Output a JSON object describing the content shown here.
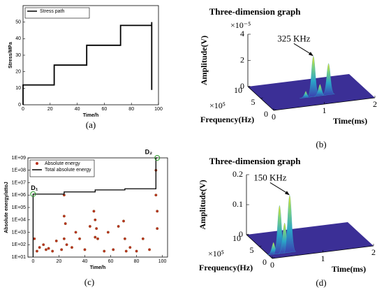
{
  "chart_data": [
    {
      "type": "line",
      "panel_label": "(a)",
      "xlabel": "Time/h",
      "ylabel": "Stress/MPa",
      "x": [
        0,
        0,
        23,
        23,
        47,
        47,
        72,
        72,
        95,
        95,
        95
      ],
      "series": [
        {
          "name": "Stress path",
          "color": "#000000",
          "values": [
            0,
            12,
            12,
            24,
            24,
            36,
            36,
            48,
            48,
            50,
            9
          ]
        }
      ],
      "xlim": [
        0,
        100
      ],
      "ylim": [
        0,
        60
      ],
      "xticks": [
        0,
        20,
        40,
        60,
        80,
        100
      ],
      "yticks": [
        0,
        10,
        20,
        30,
        40,
        50
      ],
      "legend": "upper left"
    },
    {
      "type": "surface",
      "panel_label": "(b)",
      "title": "Three-dimension graph",
      "zlabel": "Amplitude(V)",
      "xlabel": "Frequency(Hz)",
      "ylabel": "Time(ms)",
      "zscale_label": "×10⁻⁵",
      "fscale_label": "×10⁵",
      "annotation": "325 KHz",
      "zlim": [
        0,
        4
      ],
      "zticks": [
        0,
        2,
        4
      ],
      "flim": [
        0,
        10
      ],
      "fticks": [
        10,
        5,
        0
      ],
      "tlim": [
        0,
        2
      ],
      "tticks": [
        0,
        1,
        2
      ],
      "time": [
        0.95,
        1.25,
        1.08,
        0.8
      ],
      "frequency": [
        3.25,
        3.25,
        3.25,
        3.25
      ],
      "amplitude": [
        3.1,
        2.4,
        0.9,
        0.5
      ]
    },
    {
      "type": "mixed",
      "panel_label": "(c)",
      "xlabel": "Time/h",
      "ylabel": "Absolute energy/attoJ",
      "log_y": true,
      "legend": "upper left",
      "series": [
        {
          "name": "Absolute energy",
          "type": "scatter",
          "color": "#b8321e",
          "x": [
            1,
            3,
            5,
            8,
            10,
            12,
            15,
            18,
            22,
            24,
            24,
            24,
            25,
            26,
            30,
            33,
            36,
            40,
            44,
            47,
            48,
            48,
            49,
            50,
            55,
            58,
            62,
            66,
            70,
            71,
            72,
            75,
            80,
            85,
            90,
            95,
            95,
            96,
            96
          ],
          "values": [
            300,
            30,
            60,
            100,
            40,
            50,
            30,
            200,
            40,
            20000,
            1000000,
            300,
            5000,
            100,
            60,
            1000,
            300,
            40,
            3000,
            50000,
            10000,
            400,
            2000,
            300,
            30,
            1000,
            40,
            3000,
            8000,
            300,
            30,
            60,
            30,
            300,
            40,
            1000000,
            100000000,
            2000,
            50000
          ]
        },
        {
          "name": "Total absolute energy",
          "type": "line",
          "color": "#000000",
          "x": [
            0,
            0,
            24,
            24,
            48,
            48,
            71,
            71,
            95,
            95,
            96
          ],
          "values": [
            10,
            1200000,
            1200000,
            1800000,
            1800000,
            2600000,
            2600000,
            3200000,
            3200000,
            1000000000,
            1000000000
          ]
        }
      ],
      "annotations": [
        {
          "text": "D₁",
          "x": 0,
          "y": 1200000
        },
        {
          "text": "D₂",
          "x": 96,
          "y": 1000000000
        }
      ],
      "xlim": [
        -4,
        104
      ],
      "ylim": [
        10,
        1000000000
      ],
      "xticks": [
        0,
        20,
        40,
        60,
        80,
        100
      ],
      "yticks": [
        {
          "value": 10,
          "label": "1E+01"
        },
        {
          "value": 100,
          "label": "1E+02"
        },
        {
          "value": 1000,
          "label": "1E+03"
        },
        {
          "value": 10000,
          "label": "1E+04"
        },
        {
          "value": 100000,
          "label": "1E+05"
        },
        {
          "value": 1000000,
          "label": "1E+06"
        },
        {
          "value": 10000000,
          "label": "1E+07"
        },
        {
          "value": 100000000,
          "label": "1E+08"
        },
        {
          "value": 1000000000,
          "label": "1E+09"
        }
      ]
    },
    {
      "type": "surface",
      "panel_label": "(d)",
      "title": "Three-dimension graph",
      "zlabel": "Amplitude(V)",
      "xlabel": "Frequency(Hz)",
      "ylabel": "Time(ms)",
      "fscale_label": "×10⁵",
      "annotation": "150 KHz",
      "zlim": [
        0,
        0.2
      ],
      "zticks": [
        0,
        0.1,
        0.2
      ],
      "flim": [
        0,
        10
      ],
      "fticks": [
        10,
        5,
        0
      ],
      "tlim": [
        0,
        2
      ],
      "tticks": [
        0,
        1,
        2
      ],
      "time": [
        0.22,
        0.42,
        0.32,
        0.1
      ],
      "frequency": [
        1.5,
        1.5,
        1.5,
        1.5
      ],
      "amplitude": [
        0.16,
        0.19,
        0.1,
        0.04
      ]
    }
  ]
}
